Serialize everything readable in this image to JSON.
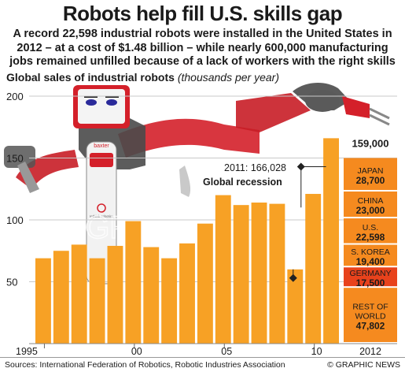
{
  "title": "Robots help fill U.S. skills gap",
  "subtitle": "A record 22,598 industrial robots were installed in the United States in 2012 – at a cost of $1.48 billion – while nearly 600,000 manufacturing jobs remained unfilled because of a lack of workers with the right skills",
  "chart_heading": "Global sales of industrial robots",
  "chart_units": "(thousands per year)",
  "robot_labels": {
    "screen_brand": "baxter",
    "body_logo": "rethink robotics"
  },
  "watermark": "GRAPHIC NEWS",
  "annotations": {
    "peak_2011": "2011: 166,028",
    "recession": "Global recession",
    "total_2012": "159,000"
  },
  "colors": {
    "bar": "#f7a125",
    "bar_gap": "#ffffff",
    "germany": "#e8421c",
    "breakdown": "#f58a1f",
    "gridline": "#c8c8c8",
    "robot_red": "#d4202a",
    "robot_dark": "#505050",
    "text": "#1a1a1a"
  },
  "chart_data": {
    "type": "bar",
    "title": "Global sales of industrial robots",
    "ylabel": "(thousands per year)",
    "ylim": [
      0,
      200
    ],
    "yticks": [
      50,
      100,
      150,
      200
    ],
    "grid": true,
    "x_tick_labels": [
      "1995",
      "00",
      "05",
      "10",
      "2012"
    ],
    "series": [
      {
        "x": [
          1995,
          1996,
          1997,
          1998,
          1999,
          2000,
          2001,
          2002,
          2003,
          2004,
          2005,
          2006,
          2007,
          2008,
          2009,
          2010,
          2011
        ],
        "values": [
          69,
          75,
          80,
          69,
          79,
          99,
          78,
          69,
          81,
          97,
          120,
          112,
          114,
          113,
          60,
          121,
          166
        ]
      }
    ],
    "breakdown_2012": {
      "total": 159000,
      "segments": [
        {
          "name": "JAPAN",
          "value": "28,700"
        },
        {
          "name": "CHINA",
          "value": "23,000"
        },
        {
          "name": "U.S.",
          "value": "22,598"
        },
        {
          "name": "S. KOREA",
          "value": "19,400"
        },
        {
          "name": "GERMANY",
          "value": "17,500"
        },
        {
          "name": "REST OF WORLD",
          "value": "47,802"
        }
      ]
    }
  },
  "footer": {
    "sources": "Sources: International Federation of Robotics, Robotic Industries Association",
    "credit": "© GRAPHIC NEWS"
  }
}
